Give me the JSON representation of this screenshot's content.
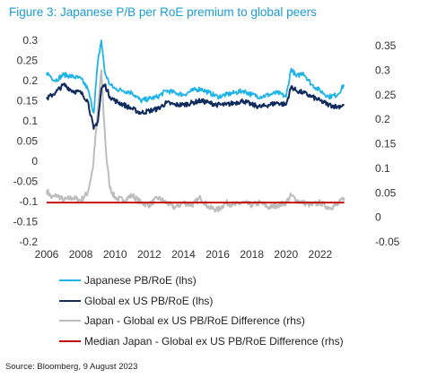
{
  "figure": {
    "title": "Figure 3: Japanese P/B per RoE premium to global peers",
    "source": "Source: Bloomberg, 9 August 2023"
  },
  "chart_data": {
    "type": "line",
    "title": "Figure 3: Japanese P/B per RoE premium to global peers",
    "x_ticks": [
      "2006",
      "2008",
      "2010",
      "2012",
      "2014",
      "2016",
      "2018",
      "2020",
      "2022"
    ],
    "y_left": {
      "range": [
        -0.2,
        0.3
      ],
      "ticks": [
        "-0.2",
        "-0.15",
        "-0.1",
        "-0.05",
        "0",
        "0.05",
        "0.1",
        "0.15",
        "0.2",
        "0.25",
        "0.3"
      ]
    },
    "y_right": {
      "range": [
        -0.05,
        0.35
      ],
      "ticks": [
        "-0.05",
        "0",
        "0.05",
        "0.1",
        "0.15",
        "0.2",
        "0.25",
        "0.3",
        "0.35"
      ]
    },
    "grid": false,
    "legend_position": "bottom",
    "series": [
      {
        "name": "Japanese PB/RoE (lhs)",
        "axis": "left",
        "color": "#1eb4e8",
        "x": [
          2006.0,
          2006.5,
          2007.0,
          2007.5,
          2008.0,
          2008.4,
          2008.75,
          2009.0,
          2009.2,
          2009.4,
          2009.7,
          2010.0,
          2010.5,
          2011.0,
          2011.5,
          2012.0,
          2012.5,
          2013.0,
          2013.5,
          2014.0,
          2014.5,
          2015.0,
          2015.5,
          2016.0,
          2016.5,
          2017.0,
          2017.5,
          2018.0,
          2018.5,
          2019.0,
          2019.5,
          2020.0,
          2020.3,
          2020.6,
          2021.0,
          2021.5,
          2022.0,
          2022.5,
          2023.0,
          2023.4
        ],
        "y": [
          0.22,
          0.2,
          0.215,
          0.21,
          0.205,
          0.18,
          0.12,
          0.25,
          0.3,
          0.22,
          0.19,
          0.18,
          0.175,
          0.17,
          0.15,
          0.155,
          0.16,
          0.175,
          0.17,
          0.165,
          0.175,
          0.18,
          0.17,
          0.16,
          0.165,
          0.17,
          0.175,
          0.165,
          0.16,
          0.165,
          0.17,
          0.16,
          0.23,
          0.21,
          0.22,
          0.19,
          0.175,
          0.16,
          0.165,
          0.19
        ]
      },
      {
        "name": "Global ex US PB/RoE (lhs)",
        "axis": "left",
        "color": "#0f2a5c",
        "x": [
          2006.0,
          2006.5,
          2007.0,
          2007.5,
          2008.0,
          2008.4,
          2008.75,
          2009.0,
          2009.2,
          2009.4,
          2009.7,
          2010.0,
          2010.5,
          2011.0,
          2011.5,
          2012.0,
          2012.5,
          2013.0,
          2013.5,
          2014.0,
          2014.5,
          2015.0,
          2015.5,
          2016.0,
          2016.5,
          2017.0,
          2017.5,
          2018.0,
          2018.5,
          2019.0,
          2019.5,
          2020.0,
          2020.3,
          2020.6,
          2021.0,
          2021.5,
          2022.0,
          2022.5,
          2023.0,
          2023.4
        ],
        "y": [
          0.155,
          0.17,
          0.19,
          0.175,
          0.17,
          0.15,
          0.08,
          0.1,
          0.18,
          0.19,
          0.16,
          0.15,
          0.14,
          0.13,
          0.12,
          0.125,
          0.13,
          0.145,
          0.14,
          0.14,
          0.145,
          0.15,
          0.145,
          0.14,
          0.14,
          0.145,
          0.15,
          0.14,
          0.135,
          0.14,
          0.145,
          0.14,
          0.185,
          0.175,
          0.17,
          0.16,
          0.15,
          0.14,
          0.135,
          0.14
        ]
      },
      {
        "name": "Japan - Global ex US PB/RoE Difference (rhs)",
        "axis": "right",
        "color": "#bdbdbd",
        "x": [
          2006.0,
          2006.3,
          2006.6,
          2007.0,
          2007.5,
          2008.0,
          2008.4,
          2008.7,
          2008.9,
          2009.05,
          2009.2,
          2009.35,
          2009.5,
          2009.7,
          2010.0,
          2010.5,
          2011.0,
          2011.5,
          2012.0,
          2012.5,
          2013.0,
          2013.5,
          2014.0,
          2014.5,
          2015.0,
          2015.5,
          2016.0,
          2016.5,
          2017.0,
          2017.5,
          2018.0,
          2018.5,
          2019.0,
          2019.5,
          2020.0,
          2020.3,
          2020.6,
          2021.0,
          2021.5,
          2022.0,
          2022.5,
          2023.0,
          2023.4
        ],
        "y": [
          0.055,
          0.04,
          0.045,
          0.035,
          0.04,
          0.035,
          0.05,
          0.1,
          0.18,
          0.24,
          0.3,
          0.2,
          0.12,
          0.06,
          0.04,
          0.035,
          0.045,
          0.03,
          0.025,
          0.04,
          0.03,
          0.02,
          0.03,
          0.025,
          0.04,
          0.02,
          0.015,
          0.03,
          0.025,
          0.03,
          0.025,
          0.03,
          0.02,
          0.025,
          0.03,
          0.045,
          0.035,
          0.03,
          0.025,
          0.03,
          0.02,
          0.025,
          0.04
        ]
      },
      {
        "name": "Median Japan - Global ex US PB/RoE Difference (rhs)",
        "axis": "right",
        "color": "#c00000",
        "x": [
          2006.0,
          2023.4
        ],
        "y": [
          0.03,
          0.03
        ]
      }
    ]
  }
}
